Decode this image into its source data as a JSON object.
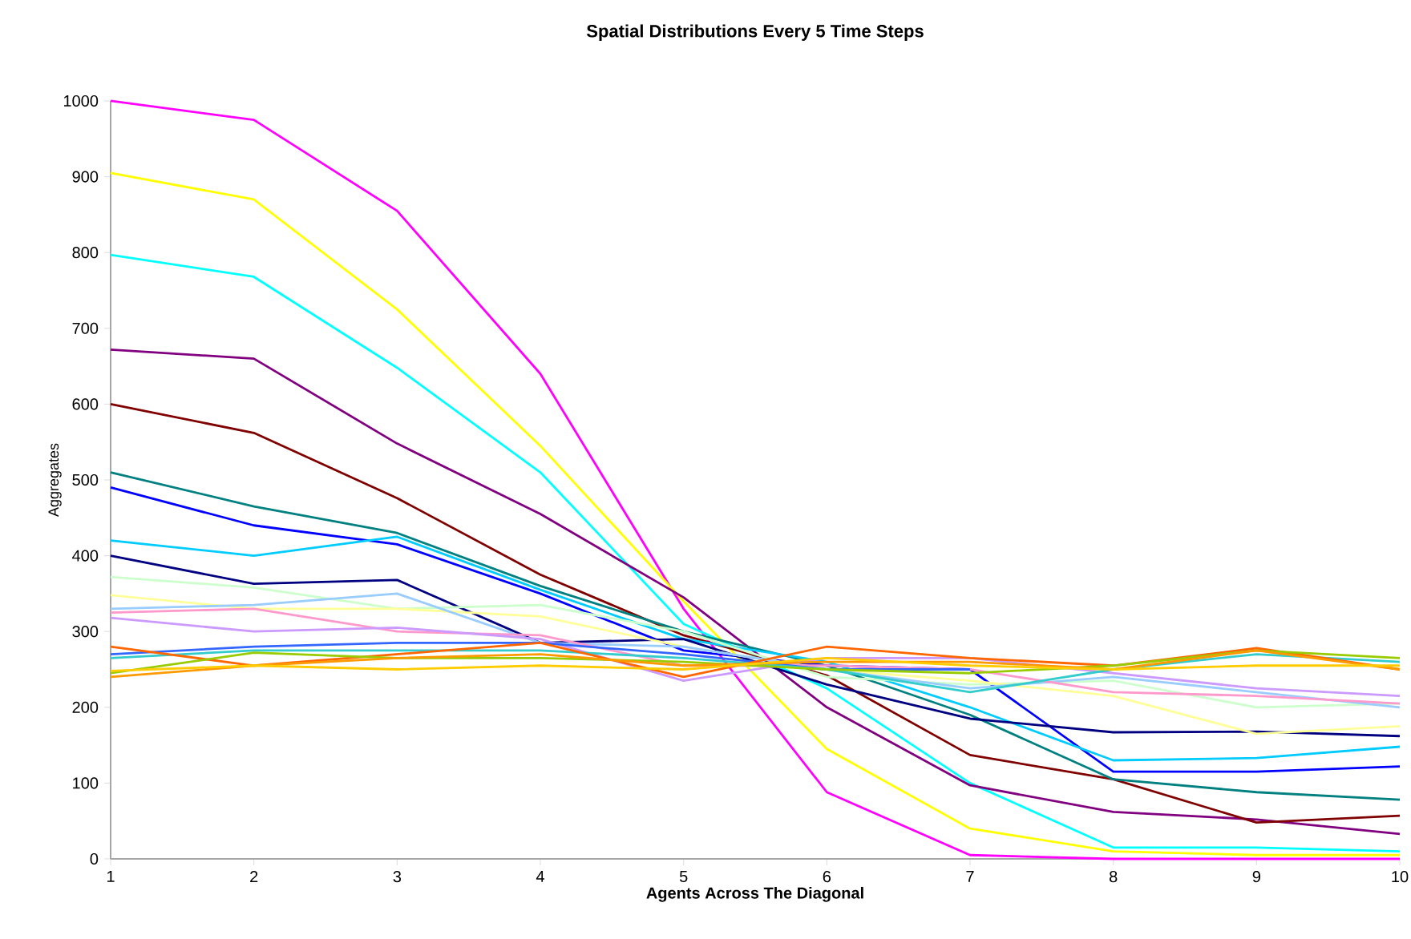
{
  "chart_data": {
    "type": "line",
    "title": "Spatial Distributions Every 5 Time Steps",
    "xlabel": "Agents Across The Diagonal",
    "ylabel": "Aggregates",
    "x": [
      1,
      2,
      3,
      4,
      5,
      6,
      7,
      8,
      9,
      10
    ],
    "xlim": [
      1,
      10
    ],
    "xticks": [
      1,
      2,
      3,
      4,
      5,
      6,
      7,
      8,
      9,
      10
    ],
    "ylim": [
      0,
      1000
    ],
    "yticks": [
      0,
      100,
      200,
      300,
      400,
      500,
      600,
      700,
      800,
      900,
      1000
    ],
    "series": [
      {
        "color": "#ff00ff",
        "values": [
          1000,
          975,
          855,
          640,
          330,
          88,
          5,
          0,
          0,
          0
        ]
      },
      {
        "color": "#ffff00",
        "values": [
          905,
          870,
          725,
          545,
          340,
          145,
          40,
          10,
          5,
          5
        ]
      },
      {
        "color": "#00ffff",
        "values": [
          797,
          768,
          648,
          510,
          310,
          225,
          100,
          15,
          15,
          10
        ]
      },
      {
        "color": "#800080",
        "values": [
          672,
          660,
          548,
          455,
          345,
          200,
          97,
          62,
          52,
          33
        ]
      },
      {
        "color": "#800000",
        "values": [
          600,
          562,
          476,
          375,
          295,
          242,
          137,
          105,
          48,
          57
        ]
      },
      {
        "color": "#008080",
        "values": [
          510,
          465,
          430,
          360,
          300,
          255,
          190,
          105,
          88,
          78
        ]
      },
      {
        "color": "#0000ff",
        "values": [
          490,
          440,
          415,
          350,
          275,
          255,
          250,
          115,
          115,
          122
        ]
      },
      {
        "color": "#00ccff",
        "values": [
          420,
          400,
          425,
          355,
          290,
          260,
          200,
          130,
          133,
          148
        ]
      },
      {
        "color": "#000080",
        "values": [
          400,
          363,
          368,
          285,
          290,
          230,
          185,
          167,
          168,
          162
        ]
      },
      {
        "color": "#ccffcc",
        "values": [
          372,
          358,
          330,
          335,
          300,
          240,
          230,
          235,
          200,
          205
        ]
      },
      {
        "color": "#ffff99",
        "values": [
          348,
          330,
          330,
          320,
          280,
          250,
          235,
          215,
          165,
          175
        ]
      },
      {
        "color": "#99ccff",
        "values": [
          330,
          335,
          350,
          285,
          280,
          250,
          225,
          240,
          220,
          200
        ]
      },
      {
        "color": "#ff99cc",
        "values": [
          325,
          330,
          300,
          295,
          255,
          255,
          250,
          220,
          215,
          205
        ]
      },
      {
        "color": "#cc99ff",
        "values": [
          318,
          300,
          305,
          290,
          235,
          265,
          265,
          245,
          225,
          215
        ]
      },
      {
        "color": "#3366ff",
        "values": [
          270,
          280,
          285,
          285,
          270,
          250,
          250,
          null,
          null,
          null
        ]
      },
      {
        "color": "#33cccc",
        "values": [
          265,
          275,
          275,
          275,
          265,
          250,
          220,
          250,
          270,
          260
        ]
      },
      {
        "color": "#ff6600",
        "values": [
          280,
          255,
          270,
          285,
          240,
          280,
          265,
          255,
          278,
          250
        ]
      },
      {
        "color": "#99cc00",
        "values": [
          245,
          272,
          265,
          265,
          260,
          250,
          245,
          255,
          275,
          265
        ]
      },
      {
        "color": "#ff9900",
        "values": [
          240,
          255,
          265,
          270,
          255,
          260,
          260,
          250,
          275,
          250
        ]
      },
      {
        "color": "#ffcc00",
        "values": [
          248,
          255,
          250,
          255,
          250,
          265,
          255,
          250,
          255,
          255
        ]
      }
    ]
  }
}
